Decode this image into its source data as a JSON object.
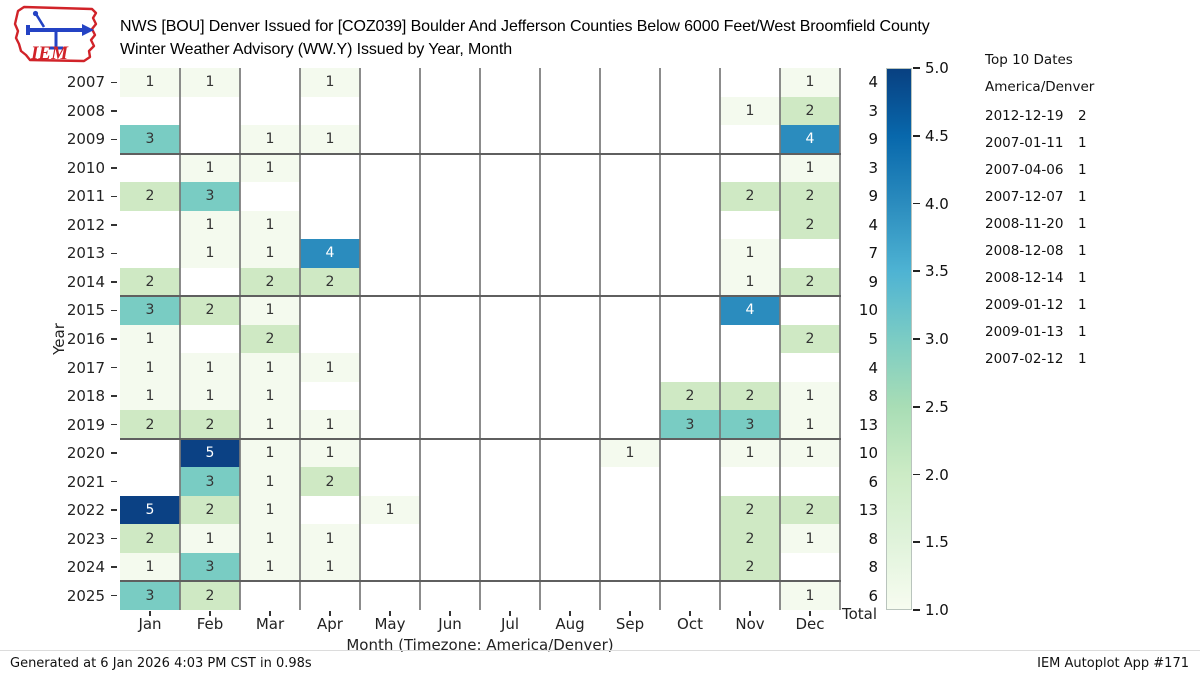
{
  "header": {
    "logo_text": "IEM",
    "title_line1": "NWS [BOU] Denver Issued for [COZ039] Boulder And Jefferson Counties Below 6000 Feet/West Broomfield County",
    "title_line2": "Winter Weather Advisory (WW.Y) Issued by Year, Month"
  },
  "chart_data": {
    "type": "heatmap",
    "xlabel": "Month (Timezone: America/Denver)",
    "ylabel": "Year",
    "total_label": "Total",
    "months": [
      "Jan",
      "Feb",
      "Mar",
      "Apr",
      "May",
      "Jun",
      "Jul",
      "Aug",
      "Sep",
      "Oct",
      "Nov",
      "Dec"
    ],
    "rows": [
      {
        "year": "2007",
        "values": [
          1,
          1,
          null,
          1,
          null,
          null,
          null,
          null,
          null,
          null,
          null,
          1
        ],
        "total": 4
      },
      {
        "year": "2008",
        "values": [
          null,
          null,
          null,
          null,
          null,
          null,
          null,
          null,
          null,
          null,
          1,
          2
        ],
        "total": 3
      },
      {
        "year": "2009",
        "values": [
          3,
          null,
          1,
          1,
          null,
          null,
          null,
          null,
          null,
          null,
          null,
          4
        ],
        "total": 9
      },
      {
        "year": "2010",
        "values": [
          null,
          1,
          1,
          null,
          null,
          null,
          null,
          null,
          null,
          null,
          null,
          1
        ],
        "total": 3
      },
      {
        "year": "2011",
        "values": [
          2,
          3,
          null,
          null,
          null,
          null,
          null,
          null,
          null,
          null,
          2,
          2
        ],
        "total": 9
      },
      {
        "year": "2012",
        "values": [
          null,
          1,
          1,
          null,
          null,
          null,
          null,
          null,
          null,
          null,
          null,
          2
        ],
        "total": 4
      },
      {
        "year": "2013",
        "values": [
          null,
          1,
          1,
          4,
          null,
          null,
          null,
          null,
          null,
          null,
          1,
          null
        ],
        "total": 7
      },
      {
        "year": "2014",
        "values": [
          2,
          null,
          2,
          2,
          null,
          null,
          null,
          null,
          null,
          null,
          1,
          2
        ],
        "total": 9
      },
      {
        "year": "2015",
        "values": [
          3,
          2,
          1,
          null,
          null,
          null,
          null,
          null,
          null,
          null,
          4,
          null
        ],
        "total": 10
      },
      {
        "year": "2016",
        "values": [
          1,
          null,
          2,
          null,
          null,
          null,
          null,
          null,
          null,
          null,
          null,
          2
        ],
        "total": 5
      },
      {
        "year": "2017",
        "values": [
          1,
          1,
          1,
          1,
          null,
          null,
          null,
          null,
          null,
          null,
          null,
          null
        ],
        "total": 4
      },
      {
        "year": "2018",
        "values": [
          1,
          1,
          1,
          null,
          null,
          null,
          null,
          null,
          null,
          2,
          2,
          1
        ],
        "total": 8
      },
      {
        "year": "2019",
        "values": [
          2,
          2,
          1,
          1,
          null,
          null,
          null,
          null,
          null,
          3,
          3,
          1
        ],
        "total": 13
      },
      {
        "year": "2020",
        "values": [
          null,
          5,
          1,
          1,
          null,
          null,
          null,
          null,
          1,
          null,
          1,
          1
        ],
        "total": 10
      },
      {
        "year": "2021",
        "values": [
          null,
          3,
          1,
          2,
          null,
          null,
          null,
          null,
          null,
          null,
          null,
          null
        ],
        "total": 6
      },
      {
        "year": "2022",
        "values": [
          5,
          2,
          1,
          null,
          1,
          null,
          null,
          null,
          null,
          null,
          2,
          2
        ],
        "total": 13
      },
      {
        "year": "2023",
        "values": [
          2,
          1,
          1,
          1,
          null,
          null,
          null,
          null,
          null,
          null,
          2,
          1
        ],
        "total": 8
      },
      {
        "year": "2024",
        "values": [
          1,
          3,
          1,
          1,
          null,
          null,
          null,
          null,
          null,
          null,
          2,
          null
        ],
        "total": 8
      },
      {
        "year": "2025",
        "values": [
          3,
          2,
          null,
          null,
          null,
          null,
          null,
          null,
          null,
          null,
          null,
          1
        ],
        "total": 6
      }
    ],
    "separator_boundaries": [
      3,
      8,
      13,
      18
    ],
    "value_colors": {
      "1": "#f4faee",
      "2": "#cfe9c4",
      "3": "#79ccc3",
      "4": "#2b8cbe",
      "5": "#0b4184"
    },
    "cell_text_dark": "#333333",
    "cell_text_light": "#ffffff",
    "grid_color": "#787878",
    "colorbar": {
      "min": 1.0,
      "max": 5.0,
      "ticks": [
        "5.0",
        "4.5",
        "4.0",
        "3.5",
        "3.0",
        "2.5",
        "2.0",
        "1.5",
        "1.0"
      ],
      "gradient": [
        "#f7fcf0",
        "#e0f3db",
        "#ccebc5",
        "#a8ddb5",
        "#7bccc4",
        "#4eb3d3",
        "#2b8cbe",
        "#0868ac",
        "#084081"
      ]
    }
  },
  "top_dates": {
    "title": "Top 10 Dates",
    "timezone": "America/Denver",
    "items": [
      {
        "date": "2012-12-19",
        "count": "2"
      },
      {
        "date": "2007-01-11",
        "count": "1"
      },
      {
        "date": "2007-04-06",
        "count": "1"
      },
      {
        "date": "2007-12-07",
        "count": "1"
      },
      {
        "date": "2008-11-20",
        "count": "1"
      },
      {
        "date": "2008-12-08",
        "count": "1"
      },
      {
        "date": "2008-12-14",
        "count": "1"
      },
      {
        "date": "2009-01-12",
        "count": "1"
      },
      {
        "date": "2009-01-13",
        "count": "1"
      },
      {
        "date": "2007-02-12",
        "count": "1"
      }
    ]
  },
  "footer": {
    "left": "Generated at 6 Jan 2026 4:03 PM CST in 0.98s",
    "right": "IEM Autoplot App #171"
  }
}
